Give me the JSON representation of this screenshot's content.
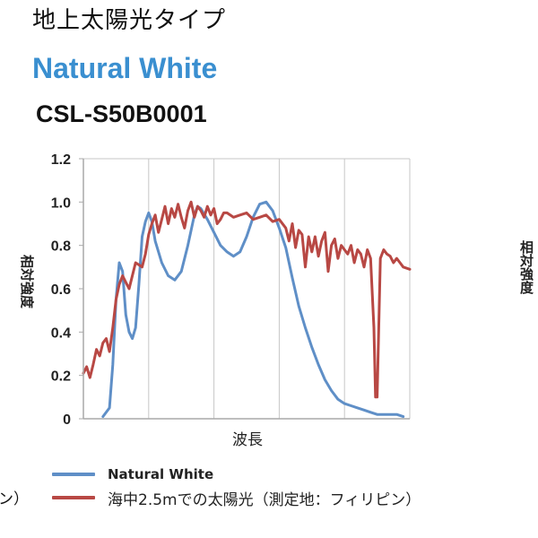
{
  "header": {
    "title": "地上太陽光タイプ",
    "subtitle": "Natural White",
    "model": "CSL-S50B0001"
  },
  "cropped_fragments": {
    "left_legend_tail": "ン）",
    "right_chart_ylabel": "相対強度"
  },
  "colors": {
    "series_blue": "#5f8fc7",
    "series_red": "#b84844",
    "grid": "#c7c7c7",
    "plot_border": "#a9a9a9",
    "subtitle_blue": "#3a8fd0"
  },
  "chart_data": {
    "type": "line",
    "xlabel": "波長",
    "ylabel": "相対強度",
    "ylim": [
      0,
      1.2
    ],
    "xlim": [
      0,
      100
    ],
    "x_ticks_shown": false,
    "y_ticks": [
      "0",
      "0.2",
      "0.4",
      "0.6",
      "0.8",
      "1.0",
      "1.2"
    ],
    "y_tick_values": [
      0,
      0.2,
      0.4,
      0.6,
      0.8,
      1.0,
      1.2
    ],
    "grid": "vertical lines and top/right border",
    "legend_position": "bottom",
    "series": [
      {
        "name": "Natural White",
        "color": "#5f8fc7",
        "points": [
          [
            6,
            0.01
          ],
          [
            8,
            0.05
          ],
          [
            9,
            0.25
          ],
          [
            10,
            0.55
          ],
          [
            11,
            0.72
          ],
          [
            12,
            0.68
          ],
          [
            13,
            0.48
          ],
          [
            14,
            0.4
          ],
          [
            15,
            0.37
          ],
          [
            16,
            0.42
          ],
          [
            17,
            0.62
          ],
          [
            18,
            0.84
          ],
          [
            19,
            0.91
          ],
          [
            20,
            0.95
          ],
          [
            21,
            0.91
          ],
          [
            22,
            0.82
          ],
          [
            24,
            0.72
          ],
          [
            26,
            0.66
          ],
          [
            28,
            0.64
          ],
          [
            30,
            0.68
          ],
          [
            32,
            0.8
          ],
          [
            34,
            0.94
          ],
          [
            35,
            0.98
          ],
          [
            36,
            0.97
          ],
          [
            38,
            0.92
          ],
          [
            40,
            0.86
          ],
          [
            42,
            0.8
          ],
          [
            44,
            0.77
          ],
          [
            46,
            0.75
          ],
          [
            48,
            0.77
          ],
          [
            50,
            0.84
          ],
          [
            52,
            0.93
          ],
          [
            54,
            0.99
          ],
          [
            56,
            1.0
          ],
          [
            58,
            0.96
          ],
          [
            60,
            0.88
          ],
          [
            62,
            0.79
          ],
          [
            64,
            0.65
          ],
          [
            66,
            0.52
          ],
          [
            68,
            0.42
          ],
          [
            70,
            0.33
          ],
          [
            72,
            0.25
          ],
          [
            74,
            0.18
          ],
          [
            76,
            0.13
          ],
          [
            78,
            0.09
          ],
          [
            80,
            0.07
          ],
          [
            82,
            0.06
          ],
          [
            84,
            0.05
          ],
          [
            86,
            0.04
          ],
          [
            88,
            0.03
          ],
          [
            90,
            0.02
          ],
          [
            92,
            0.02
          ],
          [
            96,
            0.02
          ],
          [
            98,
            0.01
          ]
        ]
      },
      {
        "name": "海中2.5mでの太陽光（測定地：フィリピン）",
        "color": "#b84844",
        "points": [
          [
            0,
            0.21
          ],
          [
            1,
            0.24
          ],
          [
            2,
            0.19
          ],
          [
            3,
            0.25
          ],
          [
            4,
            0.32
          ],
          [
            5,
            0.29
          ],
          [
            6,
            0.35
          ],
          [
            7,
            0.37
          ],
          [
            8,
            0.31
          ],
          [
            9,
            0.42
          ],
          [
            10,
            0.55
          ],
          [
            11,
            0.62
          ],
          [
            12,
            0.66
          ],
          [
            13,
            0.63
          ],
          [
            14,
            0.6
          ],
          [
            15,
            0.66
          ],
          [
            16,
            0.72
          ],
          [
            17,
            0.71
          ],
          [
            18,
            0.7
          ],
          [
            19,
            0.76
          ],
          [
            20,
            0.85
          ],
          [
            21,
            0.9
          ],
          [
            22,
            0.94
          ],
          [
            23,
            0.86
          ],
          [
            24,
            0.92
          ],
          [
            25,
            0.98
          ],
          [
            26,
            0.9
          ],
          [
            27,
            0.97
          ],
          [
            28,
            0.93
          ],
          [
            29,
            0.99
          ],
          [
            30,
            0.93
          ],
          [
            31,
            0.88
          ],
          [
            32,
            0.96
          ],
          [
            33,
            1.0
          ],
          [
            34,
            0.93
          ],
          [
            35,
            0.98
          ],
          [
            36,
            0.96
          ],
          [
            37,
            0.93
          ],
          [
            38,
            0.98
          ],
          [
            39,
            0.94
          ],
          [
            40,
            0.97
          ],
          [
            41,
            0.9
          ],
          [
            42,
            0.92
          ],
          [
            43,
            0.95
          ],
          [
            44,
            0.95
          ],
          [
            46,
            0.93
          ],
          [
            48,
            0.94
          ],
          [
            50,
            0.95
          ],
          [
            52,
            0.92
          ],
          [
            54,
            0.93
          ],
          [
            56,
            0.94
          ],
          [
            58,
            0.91
          ],
          [
            60,
            0.92
          ],
          [
            62,
            0.88
          ],
          [
            63,
            0.82
          ],
          [
            64,
            0.9
          ],
          [
            65,
            0.79
          ],
          [
            66,
            0.87
          ],
          [
            67,
            0.85
          ],
          [
            68,
            0.7
          ],
          [
            69,
            0.84
          ],
          [
            70,
            0.77
          ],
          [
            71,
            0.84
          ],
          [
            72,
            0.75
          ],
          [
            73,
            0.82
          ],
          [
            74,
            0.86
          ],
          [
            75,
            0.68
          ],
          [
            76,
            0.8
          ],
          [
            77,
            0.83
          ],
          [
            78,
            0.74
          ],
          [
            79,
            0.8
          ],
          [
            80,
            0.78
          ],
          [
            81,
            0.76
          ],
          [
            82,
            0.8
          ],
          [
            83,
            0.72
          ],
          [
            84,
            0.78
          ],
          [
            85,
            0.76
          ],
          [
            86,
            0.7
          ],
          [
            87,
            0.78
          ],
          [
            88,
            0.74
          ],
          [
            89,
            0.42
          ],
          [
            89.5,
            0.1
          ],
          [
            90,
            0.1
          ],
          [
            90.5,
            0.42
          ],
          [
            91,
            0.74
          ],
          [
            92,
            0.78
          ],
          [
            93,
            0.76
          ],
          [
            94,
            0.75
          ],
          [
            95,
            0.72
          ],
          [
            96,
            0.74
          ],
          [
            97,
            0.72
          ],
          [
            98,
            0.7
          ],
          [
            100,
            0.69
          ]
        ]
      }
    ]
  }
}
